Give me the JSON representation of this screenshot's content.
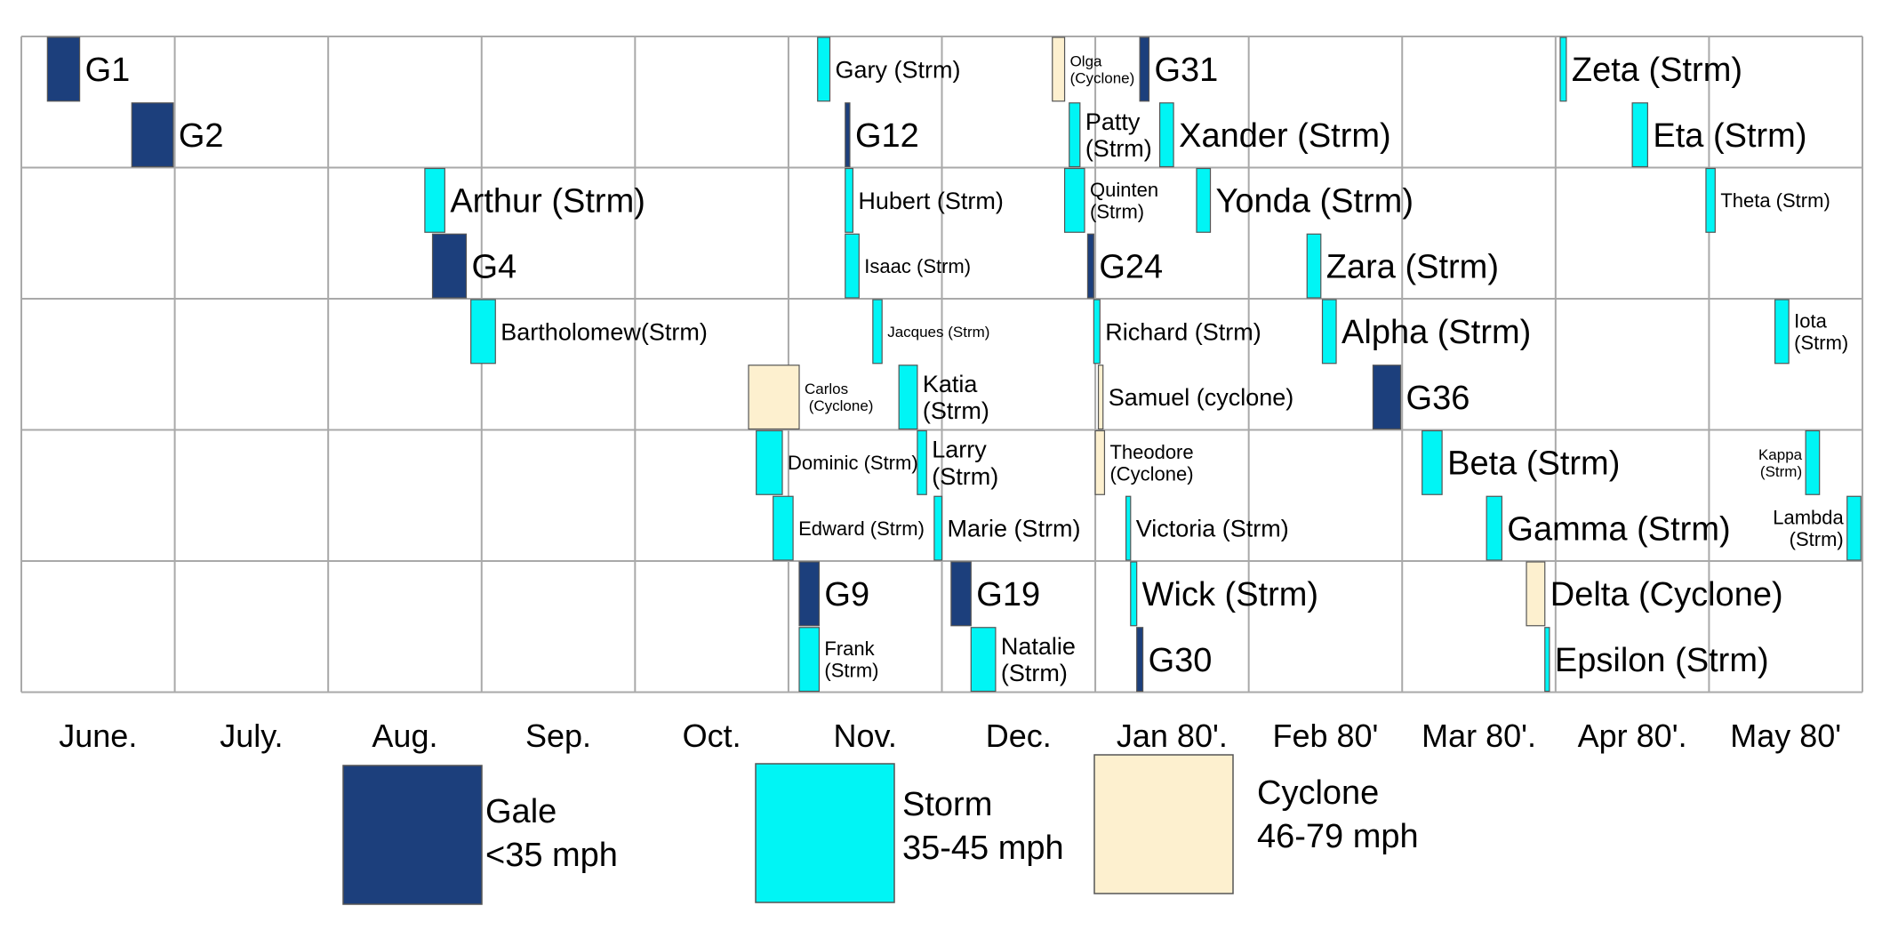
{
  "chart_data": {
    "type": "timeline",
    "months": [
      "June.",
      "July.",
      "Aug.",
      "Sep.",
      "Oct.",
      "Nov.",
      "Dec.",
      "Jan 80'.",
      "Feb 80'",
      "Mar 80'.",
      "Apr 80'.",
      "May 80'"
    ],
    "colors": {
      "gale": "#1c3f7c",
      "storm": "#00f5f5",
      "cyclone": "#fdf0cf",
      "grid": "#a9a9a9",
      "border": "#555555"
    },
    "legend": [
      {
        "type": "gale",
        "line1": "Gale",
        "line2": "<35 mph"
      },
      {
        "type": "storm",
        "line1": "Storm",
        "line2": "35-45 mph"
      },
      {
        "type": "cyclone",
        "line1": "Cyclone",
        "line2": "46-79 mph"
      }
    ],
    "events": [
      {
        "label": "G1",
        "type": "gale",
        "start": 0.17,
        "end": 0.38,
        "slot": 0,
        "size": "L"
      },
      {
        "label": "G2",
        "type": "gale",
        "start": 0.72,
        "end": 0.99,
        "slot": 1,
        "size": "L"
      },
      {
        "label": "Arthur (Strm)",
        "type": "storm",
        "start": 2.63,
        "end": 2.76,
        "slot": 2,
        "size": "L"
      },
      {
        "label": "G4",
        "type": "gale",
        "start": 2.68,
        "end": 2.9,
        "slot": 3,
        "size": "L"
      },
      {
        "label": "Bartholomew(Strm)",
        "type": "storm",
        "start": 2.93,
        "end": 3.09,
        "slot": 4,
        "size": "M"
      },
      {
        "label": "Carlos (Cyclone)",
        "lines": [
          "Carlos",
          " (Cyclone)"
        ],
        "type": "cyclone",
        "start": 4.74,
        "end": 5.07,
        "slot": 5,
        "size": "XS"
      },
      {
        "label": "Dominic (Strm)",
        "type": "storm",
        "start": 4.79,
        "end": 4.96,
        "slot": 6,
        "size": "S"
      },
      {
        "label": "Edward (Strm)",
        "type": "storm",
        "start": 4.9,
        "end": 5.03,
        "slot": 7,
        "size": "S"
      },
      {
        "label": "G9",
        "type": "gale",
        "start": 5.07,
        "end": 5.2,
        "slot": 8,
        "size": "L"
      },
      {
        "label": "Frank (Strm)",
        "lines": [
          "Frank",
          "(Strm)"
        ],
        "type": "storm",
        "start": 5.07,
        "end": 5.2,
        "slot": 9,
        "size": "S"
      },
      {
        "label": "Gary (Strm)",
        "type": "storm",
        "start": 5.19,
        "end": 5.27,
        "slot": 0,
        "size": "M"
      },
      {
        "label": "G12",
        "type": "gale",
        "start": 5.37,
        "end": 5.4,
        "slot": 1,
        "size": "L"
      },
      {
        "label": "Hubert (Strm)",
        "type": "storm",
        "start": 5.37,
        "end": 5.42,
        "slot": 2,
        "size": "M"
      },
      {
        "label": "Isaac (Strm)",
        "type": "storm",
        "start": 5.37,
        "end": 5.46,
        "slot": 3,
        "size": "S"
      },
      {
        "label": "Jacques (Strm)",
        "type": "storm",
        "start": 5.55,
        "end": 5.61,
        "slot": 4,
        "size": "XS"
      },
      {
        "label": "Katia (Strm)",
        "lines": [
          "Katia",
          "(Strm)"
        ],
        "type": "storm",
        "start": 5.72,
        "end": 5.84,
        "slot": 5,
        "size": "M"
      },
      {
        "label": "Larry (Strm)",
        "lines": [
          "Larry",
          "(Strm)"
        ],
        "type": "storm",
        "start": 5.84,
        "end": 5.9,
        "slot": 6,
        "size": "M"
      },
      {
        "label": "Marie (Strm)",
        "type": "storm",
        "start": 5.95,
        "end": 6.0,
        "slot": 7,
        "size": "M"
      },
      {
        "label": "G19",
        "type": "gale",
        "start": 6.06,
        "end": 6.19,
        "slot": 8,
        "size": "L"
      },
      {
        "label": "Natalie (Strm)",
        "lines": [
          "Natalie",
          "(Strm)"
        ],
        "type": "storm",
        "start": 6.19,
        "end": 6.35,
        "slot": 9,
        "size": "M"
      },
      {
        "label": "Olga (Cyclone)",
        "lines": [
          "Olga",
          "(Cyclone)"
        ],
        "type": "cyclone",
        "start": 6.72,
        "end": 6.8,
        "slot": 0,
        "size": "XS"
      },
      {
        "label": "Patty (Strm)",
        "lines": [
          "Patty",
          "(Strm)"
        ],
        "type": "storm",
        "start": 6.83,
        "end": 6.9,
        "slot": 1,
        "size": "M"
      },
      {
        "label": "Quinten (Strm)",
        "lines": [
          "Quinten",
          "(Strm)"
        ],
        "type": "storm",
        "start": 6.8,
        "end": 6.93,
        "slot": 2,
        "size": "S"
      },
      {
        "label": "G24",
        "type": "gale",
        "start": 6.95,
        "end": 6.99,
        "slot": 3,
        "size": "L"
      },
      {
        "label": "Richard (Strm)",
        "type": "storm",
        "start": 6.99,
        "end": 7.03,
        "slot": 4,
        "size": "M"
      },
      {
        "label": "Samuel (cyclone)",
        "type": "cyclone",
        "start": 7.02,
        "end": 7.05,
        "slot": 5,
        "size": "M"
      },
      {
        "label": "Theodore (Cyclone)",
        "lines": [
          "Theodore",
          "(Cyclone)"
        ],
        "type": "cyclone",
        "start": 7.0,
        "end": 7.06,
        "slot": 6,
        "size": "S"
      },
      {
        "label": "Victoria (Strm)",
        "type": "storm",
        "start": 7.2,
        "end": 7.23,
        "slot": 7,
        "size": "M"
      },
      {
        "label": "Wick (Strm)",
        "type": "storm",
        "start": 7.23,
        "end": 7.27,
        "slot": 8,
        "size": "L"
      },
      {
        "label": "G30",
        "type": "gale",
        "start": 7.27,
        "end": 7.31,
        "slot": 9,
        "size": "L"
      },
      {
        "label": "G31",
        "type": "gale",
        "start": 7.29,
        "end": 7.35,
        "slot": 0,
        "size": "L"
      },
      {
        "label": "Xander (Strm)",
        "type": "storm",
        "start": 7.42,
        "end": 7.51,
        "slot": 1,
        "size": "L"
      },
      {
        "label": "Yonda (Strm)",
        "type": "storm",
        "start": 7.66,
        "end": 7.75,
        "slot": 2,
        "size": "L"
      },
      {
        "label": "Zara (Strm)",
        "type": "storm",
        "start": 8.38,
        "end": 8.47,
        "slot": 3,
        "size": "L"
      },
      {
        "label": "Alpha (Strm)",
        "type": "storm",
        "start": 8.48,
        "end": 8.57,
        "slot": 4,
        "size": "L"
      },
      {
        "label": "G36",
        "type": "gale",
        "start": 8.81,
        "end": 8.99,
        "slot": 5,
        "size": "L"
      },
      {
        "label": "Beta (Strm)",
        "type": "storm",
        "start": 9.13,
        "end": 9.26,
        "slot": 6,
        "size": "L"
      },
      {
        "label": "Gamma (Strm)",
        "type": "storm",
        "start": 9.55,
        "end": 9.65,
        "slot": 7,
        "size": "L"
      },
      {
        "label": "Delta (Cyclone)",
        "type": "cyclone",
        "start": 9.81,
        "end": 9.93,
        "slot": 8,
        "size": "L"
      },
      {
        "label": "Epsilon (Strm)",
        "type": "storm",
        "start": 9.93,
        "end": 9.96,
        "slot": 9,
        "size": "L"
      },
      {
        "label": "Zeta (Strm)",
        "type": "storm",
        "start": 10.03,
        "end": 10.07,
        "slot": 0,
        "size": "L"
      },
      {
        "label": "Eta (Strm)",
        "type": "storm",
        "start": 10.5,
        "end": 10.6,
        "slot": 1,
        "size": "L"
      },
      {
        "label": "Theta (Strm)",
        "type": "storm",
        "start": 10.98,
        "end": 11.04,
        "slot": 2,
        "size": "S"
      },
      {
        "label": "Iota (Strm)",
        "lines": [
          "Iota",
          "(Strm)"
        ],
        "type": "storm",
        "start": 11.43,
        "end": 11.52,
        "slot": 4,
        "size": "S"
      },
      {
        "label": "Kappa (Strm)",
        "lines": [
          "Kappa",
          "(Strm)"
        ],
        "type": "storm",
        "start": 11.63,
        "end": 11.72,
        "slot": 6,
        "size": "XS",
        "labelSide": "left"
      },
      {
        "label": "Lambda (Strm)",
        "lines": [
          "Lambda",
          "(Strm)"
        ],
        "type": "storm",
        "start": 11.9,
        "end": 11.99,
        "slot": 7,
        "size": "S",
        "labelSide": "left"
      }
    ]
  }
}
